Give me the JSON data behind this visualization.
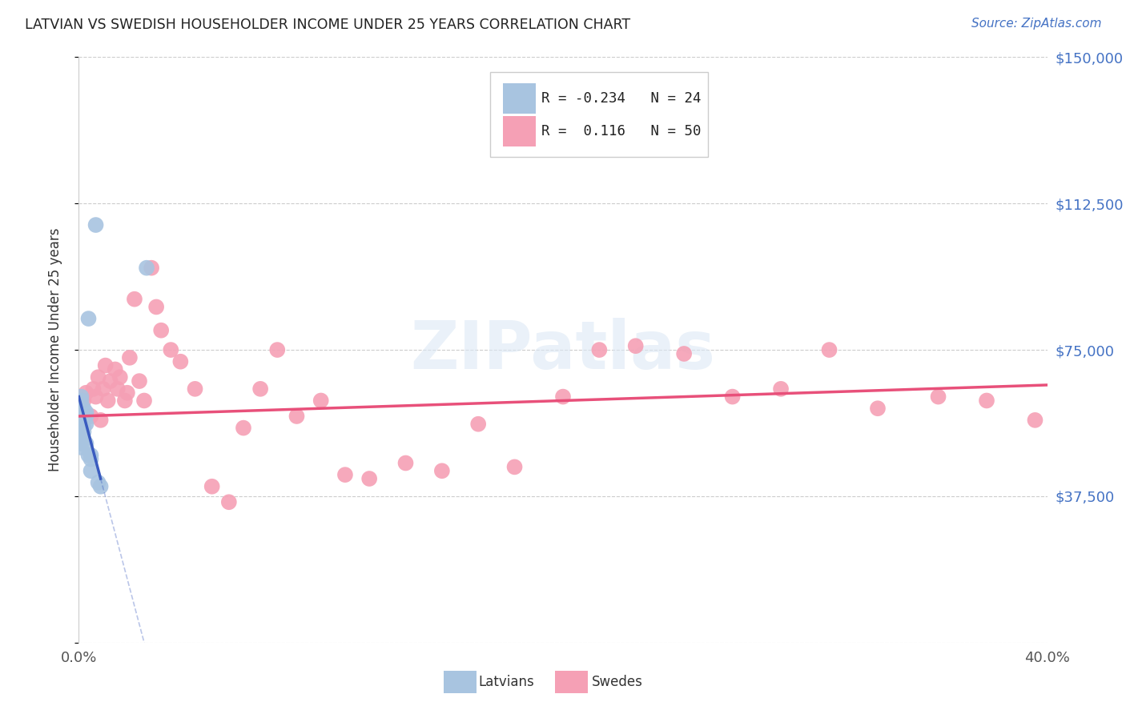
{
  "title": "LATVIAN VS SWEDISH HOUSEHOLDER INCOME UNDER 25 YEARS CORRELATION CHART",
  "source": "Source: ZipAtlas.com",
  "ylabel": "Householder Income Under 25 years",
  "xlim": [
    0.0,
    0.4
  ],
  "ylim": [
    0,
    150000
  ],
  "yticks": [
    0,
    37500,
    75000,
    112500,
    150000
  ],
  "ytick_labels": [
    "",
    "$37,500",
    "$75,000",
    "$112,500",
    "$150,000"
  ],
  "xticks": [
    0.0,
    0.1,
    0.2,
    0.3,
    0.4
  ],
  "xtick_labels": [
    "0.0%",
    "",
    "",
    "",
    "40.0%"
  ],
  "latvian_R": -0.234,
  "latvian_N": 24,
  "swedish_R": 0.116,
  "swedish_N": 50,
  "latvian_color": "#a8c4e0",
  "swedish_color": "#f5a0b5",
  "latvian_line_color": "#3a5bbf",
  "swedish_line_color": "#e8507a",
  "background_color": "#ffffff",
  "watermark_text": "ZIPatlas",
  "latvian_x": [
    0.001,
    0.001,
    0.001,
    0.001,
    0.001,
    0.002,
    0.002,
    0.002,
    0.002,
    0.002,
    0.002,
    0.003,
    0.003,
    0.003,
    0.003,
    0.004,
    0.004,
    0.005,
    0.005,
    0.005,
    0.007,
    0.008,
    0.009,
    0.028
  ],
  "latvian_y": [
    63000,
    62000,
    55000,
    51000,
    50000,
    60000,
    59000,
    57000,
    55000,
    54000,
    52000,
    59000,
    58000,
    56000,
    51000,
    83000,
    48000,
    48000,
    47000,
    44000,
    107000,
    41000,
    40000,
    96000
  ],
  "swedish_x": [
    0.002,
    0.003,
    0.005,
    0.006,
    0.007,
    0.008,
    0.009,
    0.01,
    0.011,
    0.012,
    0.013,
    0.015,
    0.016,
    0.017,
    0.019,
    0.02,
    0.021,
    0.023,
    0.025,
    0.027,
    0.03,
    0.032,
    0.034,
    0.038,
    0.042,
    0.048,
    0.055,
    0.062,
    0.068,
    0.075,
    0.082,
    0.09,
    0.1,
    0.11,
    0.12,
    0.135,
    0.15,
    0.165,
    0.18,
    0.2,
    0.215,
    0.23,
    0.25,
    0.27,
    0.29,
    0.31,
    0.33,
    0.355,
    0.375,
    0.395
  ],
  "swedish_y": [
    62000,
    64000,
    58000,
    65000,
    63000,
    68000,
    57000,
    65000,
    71000,
    62000,
    67000,
    70000,
    65000,
    68000,
    62000,
    64000,
    73000,
    88000,
    67000,
    62000,
    96000,
    86000,
    80000,
    75000,
    72000,
    65000,
    40000,
    36000,
    55000,
    65000,
    75000,
    58000,
    62000,
    43000,
    42000,
    46000,
    44000,
    56000,
    45000,
    63000,
    75000,
    76000,
    74000,
    63000,
    65000,
    75000,
    60000,
    63000,
    62000,
    57000
  ]
}
